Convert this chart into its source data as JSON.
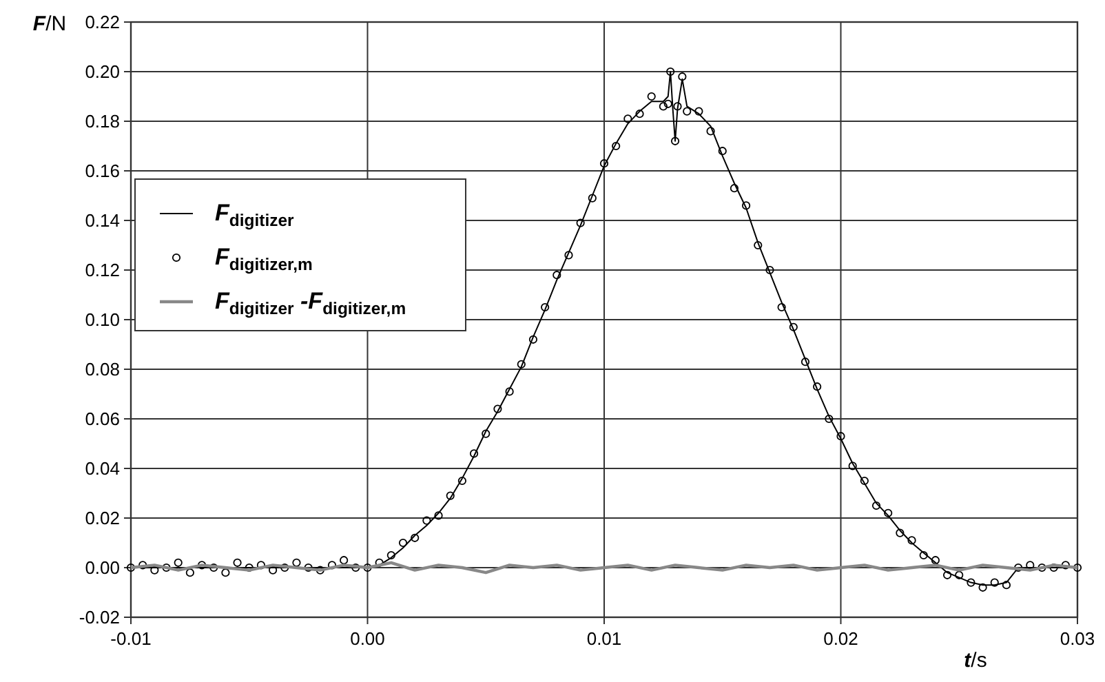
{
  "chart_data": {
    "type": "line",
    "xlabel": "t/s",
    "ylabel": "F/N",
    "xlim": [
      -0.01,
      0.03
    ],
    "xticks": [
      -0.01,
      {
        "value": 0,
        "label": "0.00"
      },
      0.01,
      0.02,
      0.03
    ],
    "ylim": [
      -0.02,
      0.22
    ],
    "yticks": [
      {
        "value": -0.02,
        "label": "-0.02"
      },
      {
        "value": 0,
        "label": "0.00"
      },
      {
        "value": 0.02,
        "label": "0.02"
      },
      {
        "value": 0.04,
        "label": "0.04"
      },
      {
        "value": 0.06,
        "label": "0.06"
      },
      {
        "value": 0.08,
        "label": "0.08"
      },
      {
        "value": 0.1,
        "label": "0.10"
      },
      {
        "value": 0.12,
        "label": "0.12"
      },
      {
        "value": 0.14,
        "label": "0.14"
      },
      {
        "value": 0.16,
        "label": "0.16"
      },
      {
        "value": 0.18,
        "label": "0.18"
      },
      {
        "value": 0.2,
        "label": "0.20"
      },
      {
        "value": 0.22,
        "label": "0.22"
      }
    ],
    "grid": true,
    "legend": "left",
    "series": [
      {
        "name": "F$_{digitizer}$",
        "color": "#000000",
        "marker": "none",
        "x": [
          -0.01,
          -0.005,
          0,
          0.0005,
          0.001,
          0.0015,
          0.002,
          0.0025,
          0.003,
          0.0035,
          0.004,
          0.0045,
          0.005,
          0.0055,
          0.006,
          0.0065,
          0.007,
          0.0075,
          0.008,
          0.0085,
          0.009,
          0.0095,
          0.01,
          0.0105,
          0.011,
          0.0115,
          0.012,
          0.0125,
          0.0127,
          0.0128,
          0.0129,
          0.013,
          0.0131,
          0.0133,
          0.0135,
          0.014,
          0.0145,
          0.015,
          0.0155,
          0.016,
          0.0165,
          0.017,
          0.0175,
          0.018,
          0.0185,
          0.019,
          0.0195,
          0.02,
          0.0205,
          0.021,
          0.0215,
          0.022,
          0.0225,
          0.023,
          0.0235,
          0.024,
          0.0245,
          0.025,
          0.0255,
          0.026,
          0.0265,
          0.027,
          0.0275,
          0.028,
          0.03
        ],
        "values": [
          0,
          0,
          0,
          0.001,
          0.004,
          0.008,
          0.013,
          0.017,
          0.022,
          0.028,
          0.036,
          0.045,
          0.055,
          0.063,
          0.072,
          0.081,
          0.093,
          0.104,
          0.116,
          0.127,
          0.138,
          0.15,
          0.162,
          0.171,
          0.179,
          0.184,
          0.188,
          0.188,
          0.19,
          0.2,
          0.185,
          0.172,
          0.185,
          0.197,
          0.186,
          0.183,
          0.178,
          0.166,
          0.155,
          0.145,
          0.131,
          0.119,
          0.107,
          0.096,
          0.084,
          0.072,
          0.061,
          0.052,
          0.042,
          0.034,
          0.026,
          0.021,
          0.015,
          0.01,
          0.006,
          0.002,
          -0.002,
          -0.004,
          -0.006,
          -0.007,
          -0.007,
          -0.006,
          0,
          0,
          0
        ]
      },
      {
        "name": "F$_{digitizer,m}$",
        "color": "#000000",
        "type": "scatter",
        "marker": "circle",
        "x": [
          -0.01,
          -0.0095,
          -0.009,
          -0.0085,
          -0.008,
          -0.0075,
          -0.007,
          -0.0065,
          -0.006,
          -0.0055,
          -0.005,
          -0.0045,
          -0.004,
          -0.0035,
          -0.003,
          -0.0025,
          -0.002,
          -0.0015,
          -0.001,
          -0.0005,
          0,
          0.0005,
          0.001,
          0.0015,
          0.002,
          0.0025,
          0.003,
          0.0035,
          0.004,
          0.0045,
          0.005,
          0.0055,
          0.006,
          0.0065,
          0.007,
          0.0075,
          0.008,
          0.0085,
          0.009,
          0.0095,
          0.01,
          0.0105,
          0.011,
          0.0115,
          0.012,
          0.0125,
          0.0127,
          0.0128,
          0.013,
          0.0131,
          0.0133,
          0.0135,
          0.014,
          0.0145,
          0.015,
          0.0155,
          0.016,
          0.0165,
          0.017,
          0.0175,
          0.018,
          0.0185,
          0.019,
          0.0195,
          0.02,
          0.0205,
          0.021,
          0.0215,
          0.022,
          0.0225,
          0.023,
          0.0235,
          0.024,
          0.0245,
          0.025,
          0.0255,
          0.026,
          0.0265,
          0.027,
          0.0275,
          0.028,
          0.0285,
          0.029,
          0.0295,
          0.03
        ],
        "values": [
          0,
          0.001,
          -0.001,
          0,
          0.002,
          -0.002,
          0.001,
          0,
          -0.002,
          0.002,
          0,
          0.001,
          -0.001,
          0,
          0.002,
          0,
          -0.001,
          0.001,
          0.003,
          0,
          0,
          0.002,
          0.005,
          0.01,
          0.012,
          0.019,
          0.021,
          0.029,
          0.035,
          0.046,
          0.054,
          0.064,
          0.071,
          0.082,
          0.092,
          0.105,
          0.118,
          0.126,
          0.139,
          0.149,
          0.163,
          0.17,
          0.181,
          0.183,
          0.19,
          0.186,
          0.187,
          0.2,
          0.172,
          0.186,
          0.198,
          0.184,
          0.184,
          0.176,
          0.168,
          0.153,
          0.146,
          0.13,
          0.12,
          0.105,
          0.097,
          0.083,
          0.073,
          0.06,
          0.053,
          0.041,
          0.035,
          0.025,
          0.022,
          0.014,
          0.011,
          0.005,
          0.003,
          -0.003,
          -0.003,
          -0.006,
          -0.008,
          -0.006,
          -0.007,
          0,
          0.001,
          0,
          0,
          0.001,
          0
        ]
      },
      {
        "name": "F$_{digitizer}$ -F$_{digitizer,m}$",
        "color": "#888888",
        "marker": "none",
        "x": [
          -0.01,
          -0.009,
          -0.008,
          -0.007,
          -0.006,
          -0.005,
          -0.004,
          -0.003,
          -0.002,
          -0.001,
          0,
          0.001,
          0.002,
          0.003,
          0.004,
          0.005,
          0.006,
          0.007,
          0.008,
          0.009,
          0.01,
          0.011,
          0.012,
          0.013,
          0.014,
          0.015,
          0.016,
          0.017,
          0.018,
          0.019,
          0.02,
          0.021,
          0.022,
          0.023,
          0.024,
          0.025,
          0.026,
          0.027,
          0.028,
          0.029,
          0.03
        ],
        "values": [
          0,
          0.001,
          -0.001,
          0.001,
          0,
          -0.001,
          0.001,
          0,
          -0.001,
          0.001,
          0,
          0.002,
          -0.001,
          0.001,
          0,
          -0.002,
          0.001,
          0,
          0.001,
          -0.001,
          0,
          0.001,
          -0.001,
          0.001,
          0,
          -0.001,
          0.001,
          0,
          0.001,
          -0.001,
          0,
          0.001,
          -0.001,
          0,
          0.001,
          -0.001,
          0.001,
          0,
          -0.001,
          0.001,
          0
        ]
      }
    ]
  }
}
